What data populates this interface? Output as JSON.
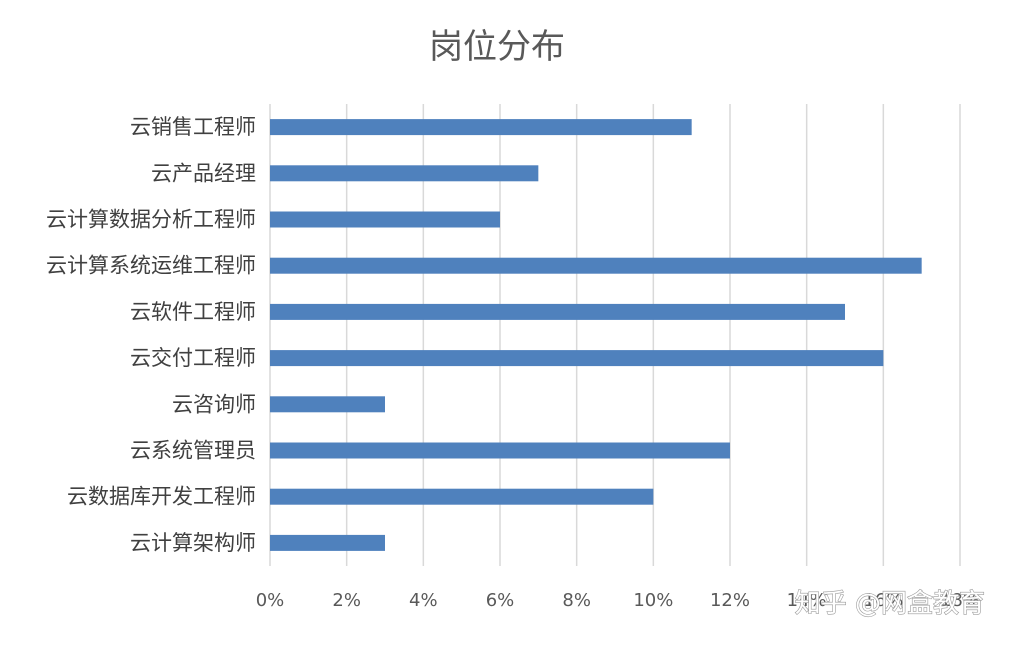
{
  "chart_data": {
    "type": "bar",
    "orientation": "horizontal",
    "title": "岗位分布",
    "categories": [
      "云销售工程师",
      "云产品经理",
      "云计算数据分析工程师",
      "云计算系统运维工程师",
      "云软件工程师",
      "云交付工程师",
      "云咨询师",
      "云系统管理员",
      "云数据库开发工程师",
      "云计算架构师"
    ],
    "values": [
      11,
      7,
      6,
      17,
      15,
      16,
      3,
      12,
      10,
      3
    ],
    "value_unit": "%",
    "xlim": [
      0,
      18
    ],
    "x_ticks": [
      "0%",
      "2%",
      "4%",
      "6%",
      "8%",
      "10%",
      "12%",
      "14%",
      "16%",
      "18%"
    ],
    "grid": "vertical",
    "bar_color": "#4f81bd"
  },
  "watermark": "知乎 @网盒教育"
}
